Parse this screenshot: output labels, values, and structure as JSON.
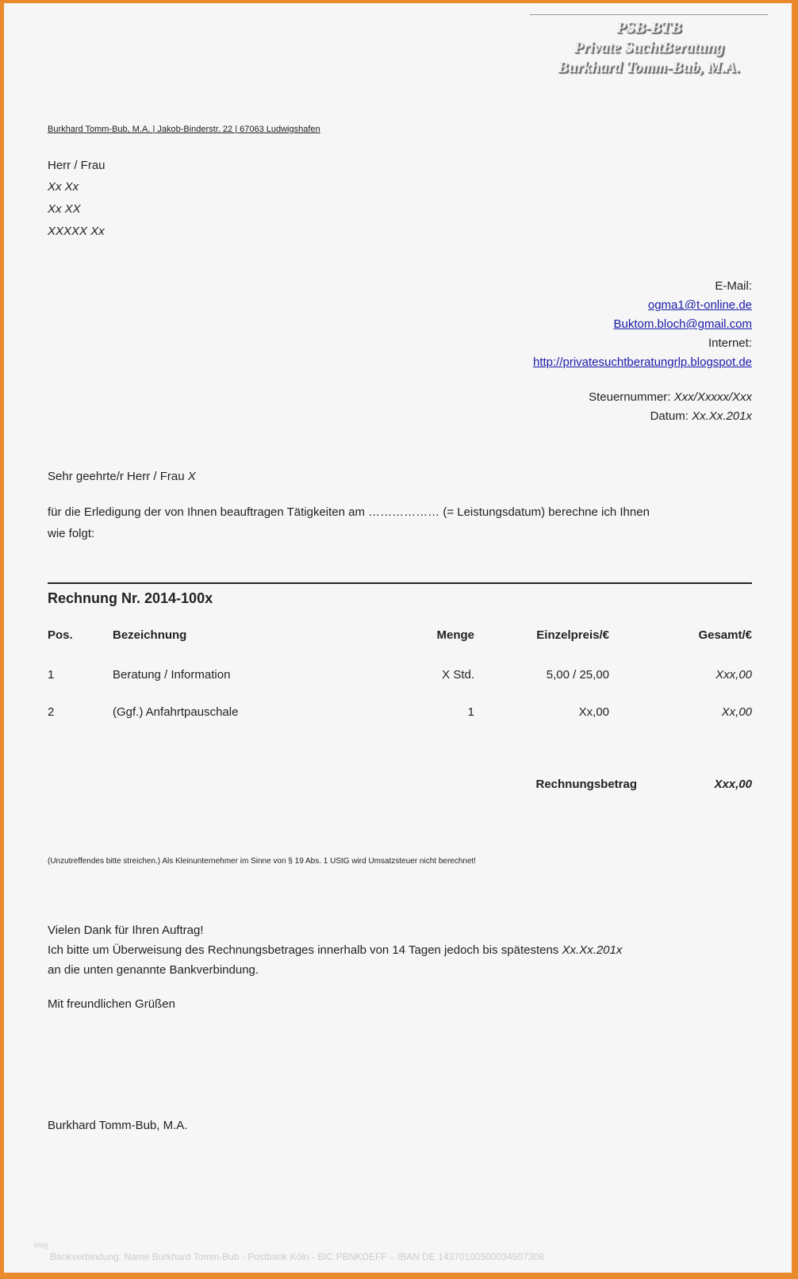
{
  "logo": {
    "line1": "PSB-BTB",
    "line2": "Private SuchtBeratung",
    "line3": "Burkhard Tomm-Bub, M.A."
  },
  "sender_line": "Burkhard Tomm-Bub, M.A. | Jakob-Binderstr. 22 | 67063 Ludwigshafen",
  "recipient": [
    "Herr / Frau",
    "Xx Xx",
    "Xx  XX",
    "XXXXX Xx"
  ],
  "contact": {
    "email_label": "E-Mail:",
    "email1": "ogma1@t-online.de",
    "email2": "Buktom.bloch@gmail.com",
    "internet_label": "Internet:",
    "url": "http://privatesuchtberatungrlp.blogspot.de",
    "tax_label": "Steuernummer:",
    "tax_value": "Xxx/Xxxxx/Xxx",
    "date_label": "Datum:",
    "date_value": "Xx.Xx.201x"
  },
  "salutation": {
    "text": "Sehr geehrte/r Herr / Frau ",
    "name": "X"
  },
  "intro": {
    "line1": "für die Erledigung der von Ihnen beauftragen Tätigkeiten am ……………… (= Leistungsdatum) berechne ich Ihnen",
    "line2": "wie folgt:"
  },
  "invoice": {
    "title": "Rechnung Nr. 2014-100x",
    "headers": [
      "Pos.",
      "Bezeichnung",
      "Menge",
      "Einzelpreis/€",
      "Gesamt/€"
    ],
    "rows": [
      [
        "1",
        "Beratung / Information",
        "X Std.",
        "5,00 / 25,00",
        "Xxx,00"
      ],
      [
        "2",
        "(Ggf.) Anfahrtpauschale",
        "1",
        "Xx,00",
        "Xx,00"
      ]
    ],
    "total_label": "Rechnungsbetrag",
    "total_value": "Xxx,00"
  },
  "note": "(Unzutreffendes bitte streichen.) Als Kleinunternehmer im Sinne von § 19 Abs. 1 UStG wird Umsatzsteuer nicht berechnet!",
  "closing": {
    "thanks": "Vielen Dank für Ihren Auftrag!",
    "payment": "Ich bitte um Überweisung des Rechnungsbetrages innerhalb von 14 Tagen jedoch bis spätestens ",
    "payment_date": "Xx.Xx.201x",
    "payment2": "an die unten genannte Bankverbindung.",
    "greeting": "Mit freundlichen Grüßen",
    "signature": "Burkhard Tomm-Bub, M.A."
  },
  "watermark": "blog",
  "footer": "Bankverbindung:  Name Burkhard Tomm-Bub - Postbank Köln - BIC PBNKDEFF – IBAN DE 14370100500034507308"
}
